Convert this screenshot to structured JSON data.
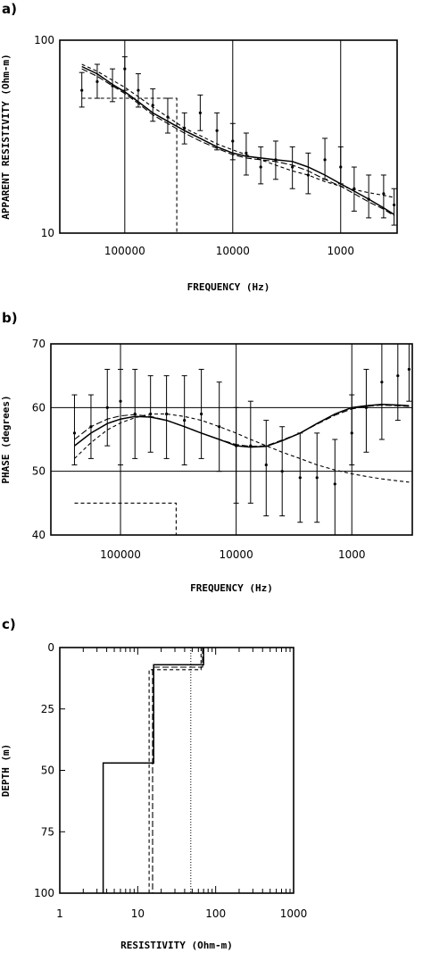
{
  "colors": {
    "ink": "#000000",
    "background": "#ffffff"
  },
  "chart_data": [
    {
      "panel": "a)",
      "type": "scatter",
      "xlabel": "FREQUENCY (Hz)",
      "ylabel": "APPARENT RESISTIVITY (Ohm-m)",
      "xscale": "log-reversed",
      "yscale": "log",
      "xlim": [
        400000,
        300
      ],
      "ylim": [
        10,
        100
      ],
      "xticks": [
        100000,
        10000,
        1000
      ],
      "xtick_labels": [
        "100000",
        "10000",
        "1000"
      ],
      "yticks": [
        10,
        100
      ],
      "ytick_labels": [
        "10",
        "100"
      ],
      "grid": "vertical lines at decades",
      "observed": {
        "x": [
          250000,
          180000,
          130000,
          100000,
          75000,
          55000,
          40000,
          28000,
          20000,
          14000,
          10000,
          7500,
          5500,
          4000,
          2800,
          2000,
          1400,
          1000,
          750,
          550,
          400,
          320
        ],
        "y": [
          55,
          61,
          58,
          71,
          55,
          46,
          40,
          35,
          42,
          34,
          30,
          26,
          22,
          24,
          22,
          20,
          24,
          22,
          17,
          15,
          16,
          14
        ],
        "err_lo": [
          45,
          50,
          48,
          55,
          45,
          38,
          33,
          29,
          34,
          27,
          24,
          20,
          18,
          19,
          17,
          16,
          19,
          18,
          13,
          12,
          12,
          11
        ],
        "err_hi": [
          68,
          75,
          71,
          82,
          67,
          56,
          50,
          42,
          52,
          42,
          37,
          33,
          28,
          30,
          28,
          26,
          31,
          28,
          22,
          20,
          20,
          17
        ]
      },
      "series": [
        {
          "style": "solid",
          "x": [
            250000,
            180000,
            130000,
            100000,
            75000,
            55000,
            40000,
            28000,
            20000,
            14000,
            10000,
            7500,
            5500,
            4000,
            2800,
            2000,
            1400,
            1000,
            750,
            550,
            400,
            320
          ],
          "y": [
            73,
            67,
            59,
            54,
            48,
            42,
            38,
            34,
            31,
            28,
            26,
            25,
            24.5,
            24,
            23.5,
            22,
            20,
            18,
            16.5,
            15,
            13.5,
            12.5
          ]
        },
        {
          "style": "dashed",
          "x": [
            250000,
            180000,
            130000,
            100000,
            75000,
            55000,
            40000,
            28000,
            20000,
            14000,
            10000,
            7500,
            5500,
            4000,
            2800,
            2000,
            1400,
            1000,
            750,
            550,
            400,
            320
          ],
          "y": [
            75,
            69,
            62,
            57,
            51,
            45,
            40,
            35,
            32,
            29,
            27,
            25.5,
            24,
            22.5,
            21,
            20,
            18.5,
            17.5,
            16.8,
            16.2,
            15.7,
            15.3
          ]
        },
        {
          "style": "long-dash",
          "x": [
            250000,
            180000,
            130000,
            100000,
            75000,
            55000,
            40000,
            28000,
            20000,
            14000,
            10000,
            7500,
            5500,
            4000,
            2800,
            2000,
            1400,
            1000,
            750,
            550,
            400,
            320
          ],
          "y": [
            71,
            65,
            58,
            53,
            47,
            41,
            37,
            33,
            30,
            27.5,
            25.5,
            24.5,
            24,
            23.5,
            22.5,
            21,
            19,
            17.5,
            16,
            14.5,
            13.3,
            12.3
          ]
        },
        {
          "style": "dashed-step",
          "x": [
            250000,
            33000,
            33000,
            3300,
            3300
          ],
          "y": [
            50,
            50,
            10,
            10,
            10
          ]
        }
      ]
    },
    {
      "panel": "b)",
      "type": "scatter",
      "xlabel": "FREQUENCY (Hz)",
      "ylabel": "PHASE (degrees)",
      "xscale": "log-reversed",
      "yscale": "linear",
      "xlim": [
        400000,
        300
      ],
      "ylim": [
        40,
        70
      ],
      "xticks": [
        100000,
        10000,
        1000
      ],
      "xtick_labels": [
        "100000",
        "10000",
        "1000"
      ],
      "yticks": [
        40,
        50,
        60,
        70
      ],
      "ytick_labels": [
        "40",
        "50",
        "60",
        "70"
      ],
      "grid": "vertical lines at decades, horizontal lines at 50 and 60",
      "observed": {
        "x": [
          250000,
          180000,
          130000,
          100000,
          75000,
          55000,
          40000,
          28000,
          20000,
          14000,
          10000,
          7500,
          5500,
          4000,
          2800,
          2000,
          1400,
          1000,
          750,
          550,
          400,
          320
        ],
        "y": [
          56,
          57,
          60,
          61,
          59,
          59,
          59,
          58,
          59,
          57,
          54,
          54,
          51,
          50,
          49,
          49,
          48,
          56,
          60,
          64,
          65,
          66
        ],
        "err_lo": [
          51,
          52,
          54,
          51,
          52,
          53,
          52,
          51,
          52,
          50,
          45,
          45,
          43,
          43,
          42,
          42,
          40,
          51,
          53,
          55,
          58,
          61
        ],
        "err_hi": [
          62,
          62,
          66,
          66,
          66,
          65,
          65,
          65,
          66,
          64,
          60,
          61,
          58,
          57,
          56,
          56,
          55,
          62,
          66,
          70,
          70,
          70
        ]
      },
      "series": [
        {
          "style": "solid",
          "x": [
            250000,
            180000,
            130000,
            100000,
            75000,
            55000,
            40000,
            28000,
            20000,
            14000,
            10000,
            7500,
            5500,
            4000,
            2800,
            2000,
            1400,
            1000,
            750,
            550,
            400,
            320
          ],
          "y": [
            54,
            56,
            57.5,
            58.2,
            58.6,
            58.5,
            58,
            57,
            56,
            55,
            54,
            53.8,
            53.9,
            54.8,
            56,
            57.5,
            59,
            60,
            60.3,
            60.5,
            60.4,
            60.3
          ]
        },
        {
          "style": "dashed",
          "x": [
            250000,
            180000,
            130000,
            100000,
            75000,
            55000,
            40000,
            28000,
            20000,
            14000,
            10000,
            7500,
            5500,
            4000,
            2800,
            2000,
            1400,
            1000,
            750,
            550,
            400,
            320
          ],
          "y": [
            52,
            54.5,
            56.5,
            57.6,
            58.4,
            59,
            59,
            58.6,
            58,
            57,
            56,
            55,
            54,
            53,
            52,
            51,
            50.2,
            49.6,
            49.2,
            48.8,
            48.5,
            48.3
          ]
        },
        {
          "style": "long-dash",
          "x": [
            250000,
            180000,
            130000,
            100000,
            75000,
            55000,
            40000,
            28000,
            20000,
            14000,
            10000,
            7500,
            5500,
            4000,
            2800,
            2000,
            1400,
            1000,
            750,
            550,
            400,
            320
          ],
          "y": [
            55,
            57,
            58.2,
            58.7,
            58.9,
            58.6,
            58,
            57,
            56,
            55,
            54.2,
            53.9,
            54,
            54.9,
            56,
            57.4,
            58.8,
            59.8,
            60.2,
            60.4,
            60.3,
            60.2
          ]
        },
        {
          "style": "dashed-step",
          "x": [
            250000,
            33000,
            33000,
            3300,
            3300
          ],
          "y": [
            45,
            45,
            40,
            40,
            40
          ]
        }
      ]
    },
    {
      "panel": "c)",
      "type": "line",
      "xlabel": "RESISTIVITY (Ohm-m)",
      "ylabel": "DEPTH (m)",
      "xscale": "log",
      "yscale": "linear-reversed",
      "xlim": [
        1,
        1000
      ],
      "ylim": [
        0,
        100
      ],
      "xticks": [
        1,
        10,
        100,
        1000
      ],
      "xtick_labels": [
        "1",
        "10",
        "100",
        "1000"
      ],
      "yticks": [
        0,
        25,
        50,
        75,
        100
      ],
      "ytick_labels": [
        "0",
        "25",
        "50",
        "75",
        "100"
      ],
      "series": [
        {
          "style": "solid",
          "x": [
            70,
            70,
            16,
            16,
            3.6,
            3.6
          ],
          "y": [
            0,
            7,
            7,
            47,
            47,
            100
          ]
        },
        {
          "style": "dashed",
          "x": [
            65,
            65,
            14,
            14
          ],
          "y": [
            0,
            9,
            9,
            100
          ]
        },
        {
          "style": "long-dash",
          "x": [
            68,
            68,
            15.5,
            15.5
          ],
          "y": [
            0,
            8,
            8,
            100
          ]
        },
        {
          "style": "dotted",
          "x": [
            48,
            48
          ],
          "y": [
            0,
            100
          ]
        }
      ]
    }
  ]
}
